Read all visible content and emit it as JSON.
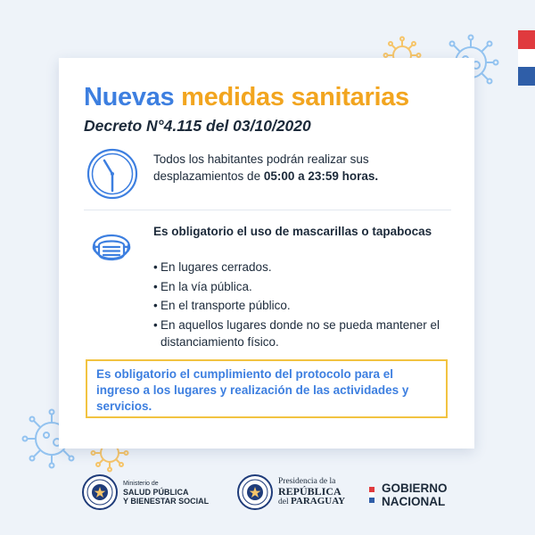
{
  "colors": {
    "blue": "#3d7fe0",
    "orange": "#f2a51f",
    "yellow_border": "#f2c341",
    "flag_red": "#e03a3e",
    "flag_white": "#ffffff",
    "flag_blue": "#2f5ea8",
    "virus": "#93c3f0",
    "virus_orange": "#f6c56a"
  },
  "card": {
    "title_part1": "Nuevas",
    "title_part2": "medidas sanitarias",
    "subtitle": "Decreto N°4.115 del 03/10/2020",
    "section1": {
      "icon": "clock-icon",
      "text_before": "Todos los habitantes podrán realizar sus desplazamientos de ",
      "text_bold": "05:00 a 23:59 horas."
    },
    "section2": {
      "icon": "face-mask-icon",
      "heading": "Es obligatorio el uso de mascarillas o tapabocas",
      "items": [
        "En lugares cerrados.",
        "En la vía pública.",
        "En el transporte público.",
        "En aquellos lugares donde no se pueda mantener el distanciamiento físico."
      ]
    },
    "notice": "Es obligatorio el cumplimiento del protocolo para el ingreso a los lugares y realización de las actividades y servicios."
  },
  "footer": {
    "msp": {
      "line1": "Ministerio de",
      "line2": "SALUD PÚBLICA",
      "line3": "Y BIENESTAR SOCIAL"
    },
    "presidencia": {
      "line1": "Presidencia de la",
      "line2": "REPÚBLICA",
      "line3_prefix": "del",
      "line3_bold": "PARAGUAY"
    },
    "gobierno": {
      "line1": "GOBIERNO",
      "line2": "NACIONAL"
    }
  }
}
